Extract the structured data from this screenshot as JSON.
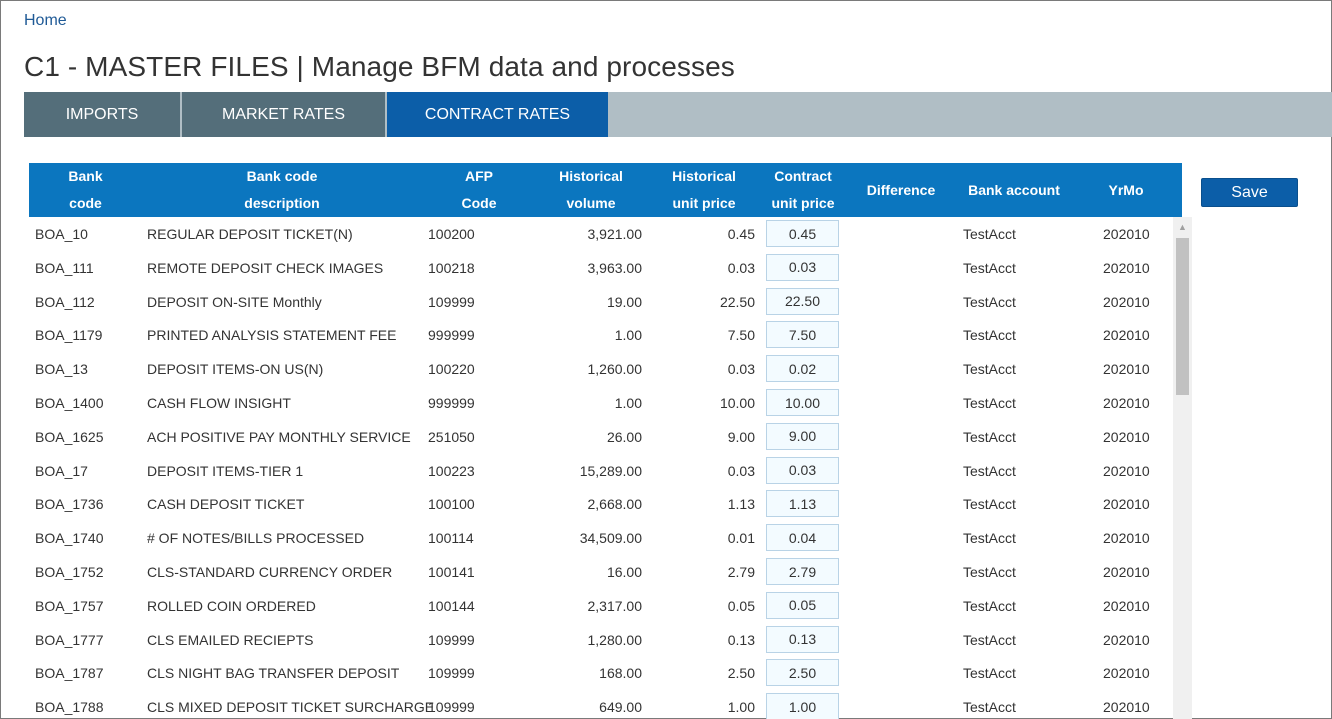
{
  "breadcrumb": {
    "home": "Home"
  },
  "page_title": "C1 - MASTER FILES | Manage BFM data and processes",
  "tabs": [
    {
      "label": "IMPORTS",
      "active": false
    },
    {
      "label": "MARKET RATES",
      "active": false
    },
    {
      "label": "CONTRACT RATES",
      "active": true
    }
  ],
  "actions": {
    "save_label": "Save"
  },
  "table": {
    "headers": {
      "bank_code": [
        "Bank",
        "code"
      ],
      "description": [
        "Bank code",
        "description"
      ],
      "afp_code": [
        "AFP",
        "Code"
      ],
      "hist_volume": [
        "Historical",
        "volume"
      ],
      "hist_price": [
        "Historical",
        "unit price"
      ],
      "contract_price": [
        "Contract",
        "unit price"
      ],
      "difference": [
        "Difference"
      ],
      "bank_account": [
        "Bank account"
      ],
      "yrmo": [
        "YrMo"
      ]
    },
    "rows": [
      {
        "bank_code": "BOA_10",
        "description": "REGULAR DEPOSIT TICKET(N)",
        "afp_code": "100200",
        "hist_volume": "3,921.00",
        "hist_price": "0.45",
        "contract_price": "0.45",
        "difference": "",
        "bank_account": "TestAcct",
        "yrmo": "202010"
      },
      {
        "bank_code": "BOA_111",
        "description": "REMOTE DEPOSIT CHECK IMAGES",
        "afp_code": "100218",
        "hist_volume": "3,963.00",
        "hist_price": "0.03",
        "contract_price": "0.03",
        "difference": "",
        "bank_account": "TestAcct",
        "yrmo": "202010"
      },
      {
        "bank_code": "BOA_112",
        "description": "DEPOSIT ON-SITE Monthly",
        "afp_code": "109999",
        "hist_volume": "19.00",
        "hist_price": "22.50",
        "contract_price": "22.50",
        "difference": "",
        "bank_account": "TestAcct",
        "yrmo": "202010"
      },
      {
        "bank_code": "BOA_1179",
        "description": "PRINTED ANALYSIS STATEMENT FEE",
        "afp_code": "999999",
        "hist_volume": "1.00",
        "hist_price": "7.50",
        "contract_price": "7.50",
        "difference": "",
        "bank_account": "TestAcct",
        "yrmo": "202010"
      },
      {
        "bank_code": "BOA_13",
        "description": "DEPOSIT ITEMS-ON US(N)",
        "afp_code": "100220",
        "hist_volume": "1,260.00",
        "hist_price": "0.03",
        "contract_price": "0.02",
        "difference": "",
        "bank_account": "TestAcct",
        "yrmo": "202010"
      },
      {
        "bank_code": "BOA_1400",
        "description": "CASH FLOW INSIGHT",
        "afp_code": "999999",
        "hist_volume": "1.00",
        "hist_price": "10.00",
        "contract_price": "10.00",
        "difference": "",
        "bank_account": "TestAcct",
        "yrmo": "202010"
      },
      {
        "bank_code": "BOA_1625",
        "description": "ACH POSITIVE PAY MONTHLY SERVICE",
        "afp_code": "251050",
        "hist_volume": "26.00",
        "hist_price": "9.00",
        "contract_price": "9.00",
        "difference": "",
        "bank_account": "TestAcct",
        "yrmo": "202010"
      },
      {
        "bank_code": "BOA_17",
        "description": "DEPOSIT ITEMS-TIER 1",
        "afp_code": "100223",
        "hist_volume": "15,289.00",
        "hist_price": "0.03",
        "contract_price": "0.03",
        "difference": "",
        "bank_account": "TestAcct",
        "yrmo": "202010"
      },
      {
        "bank_code": "BOA_1736",
        "description": "CASH DEPOSIT TICKET",
        "afp_code": "100100",
        "hist_volume": "2,668.00",
        "hist_price": "1.13",
        "contract_price": "1.13",
        "difference": "",
        "bank_account": "TestAcct",
        "yrmo": "202010"
      },
      {
        "bank_code": "BOA_1740",
        "description": "# OF NOTES/BILLS PROCESSED",
        "afp_code": "100114",
        "hist_volume": "34,509.00",
        "hist_price": "0.01",
        "contract_price": "0.04",
        "difference": "",
        "bank_account": "TestAcct",
        "yrmo": "202010"
      },
      {
        "bank_code": "BOA_1752",
        "description": "CLS-STANDARD CURRENCY ORDER",
        "afp_code": "100141",
        "hist_volume": "16.00",
        "hist_price": "2.79",
        "contract_price": "2.79",
        "difference": "",
        "bank_account": "TestAcct",
        "yrmo": "202010"
      },
      {
        "bank_code": "BOA_1757",
        "description": "ROLLED COIN ORDERED",
        "afp_code": "100144",
        "hist_volume": "2,317.00",
        "hist_price": "0.05",
        "contract_price": "0.05",
        "difference": "",
        "bank_account": "TestAcct",
        "yrmo": "202010"
      },
      {
        "bank_code": "BOA_1777",
        "description": "CLS EMAILED RECIEPTS",
        "afp_code": "109999",
        "hist_volume": "1,280.00",
        "hist_price": "0.13",
        "contract_price": "0.13",
        "difference": "",
        "bank_account": "TestAcct",
        "yrmo": "202010"
      },
      {
        "bank_code": "BOA_1787",
        "description": "CLS NIGHT BAG TRANSFER DEPOSIT",
        "afp_code": "109999",
        "hist_volume": "168.00",
        "hist_price": "2.50",
        "contract_price": "2.50",
        "difference": "",
        "bank_account": "TestAcct",
        "yrmo": "202010"
      },
      {
        "bank_code": "BOA_1788",
        "description": "CLS MIXED DEPOSIT TICKET SURCHARGE",
        "afp_code": "109999",
        "hist_volume": "649.00",
        "hist_price": "1.00",
        "contract_price": "1.00",
        "difference": "",
        "bank_account": "TestAcct",
        "yrmo": "202010"
      }
    ]
  },
  "scrollbar": {
    "up_arrow_icon": "triangle-up-icon"
  }
}
